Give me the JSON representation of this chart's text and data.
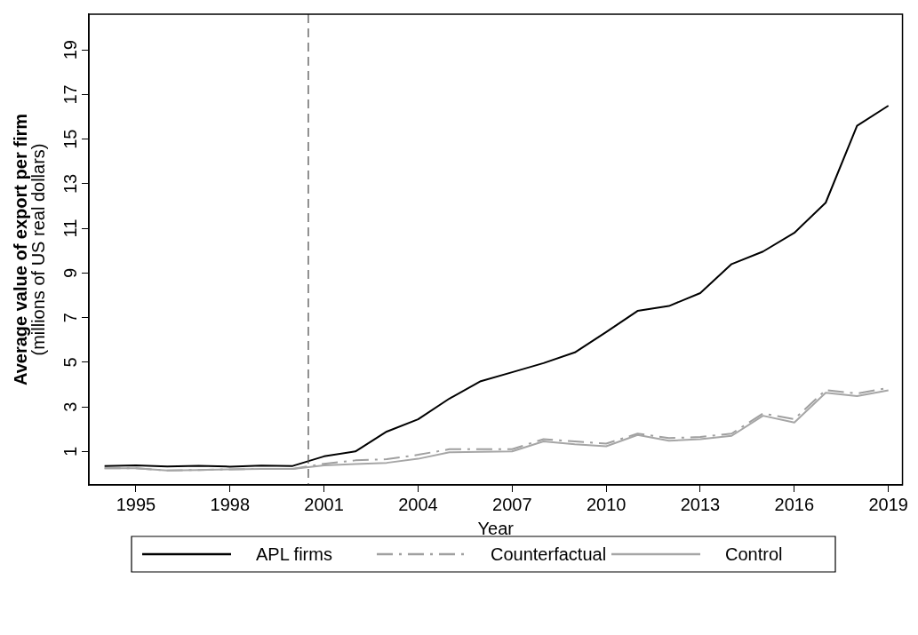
{
  "chart_data": {
    "type": "line",
    "xlabel": "Year",
    "ylabel": "Average value of export per firm\n(millions of US real dollars)",
    "x": [
      1994,
      1995,
      1996,
      1997,
      1998,
      1999,
      2000,
      2001,
      2002,
      2003,
      2004,
      2005,
      2006,
      2007,
      2008,
      2009,
      2010,
      2011,
      2012,
      2013,
      2014,
      2015,
      2016,
      2017,
      2018,
      2019
    ],
    "series": [
      {
        "name": "APL firms",
        "color": "#000000",
        "line_style": "solid",
        "values": [
          0.35,
          0.38,
          0.33,
          0.36,
          0.32,
          0.37,
          0.35,
          0.78,
          1.0,
          1.89,
          2.44,
          3.37,
          4.15,
          4.55,
          4.96,
          5.44,
          6.35,
          7.3,
          7.52,
          8.1,
          9.4,
          9.96,
          10.8,
          12.15,
          15.6,
          16.5
        ]
      },
      {
        "name": "Counterfactual",
        "color": "#a0a0a0",
        "line_style": "dashdot",
        "values": [
          0.25,
          0.25,
          0.15,
          0.17,
          0.2,
          0.22,
          0.22,
          0.45,
          0.6,
          0.65,
          0.85,
          1.1,
          1.1,
          1.1,
          1.55,
          1.45,
          1.35,
          1.8,
          1.6,
          1.65,
          1.8,
          2.7,
          2.45,
          3.75,
          3.6,
          3.85
        ]
      },
      {
        "name": "Control",
        "color": "#a6a6a6",
        "line_style": "solid",
        "values": [
          0.25,
          0.25,
          0.15,
          0.17,
          0.2,
          0.22,
          0.22,
          0.38,
          0.44,
          0.49,
          0.67,
          0.96,
          0.98,
          1.0,
          1.45,
          1.32,
          1.23,
          1.74,
          1.48,
          1.55,
          1.7,
          2.6,
          2.3,
          3.63,
          3.48,
          3.74
        ]
      }
    ],
    "xlim": [
      1993.5,
      2019.45
    ],
    "xticks": [
      1995,
      1998,
      2001,
      2004,
      2007,
      2010,
      2013,
      2016,
      2019
    ],
    "ylim": [
      -0.5,
      20.6
    ],
    "yticks": [
      1,
      3,
      5,
      7,
      9,
      11,
      13,
      15,
      17,
      19
    ],
    "ref_lines": [
      {
        "axis": "x",
        "value": 2000.5,
        "color": "#555555",
        "line_style": "dashed"
      }
    ],
    "grid": false,
    "legend": "bottom",
    "marker": "none"
  }
}
